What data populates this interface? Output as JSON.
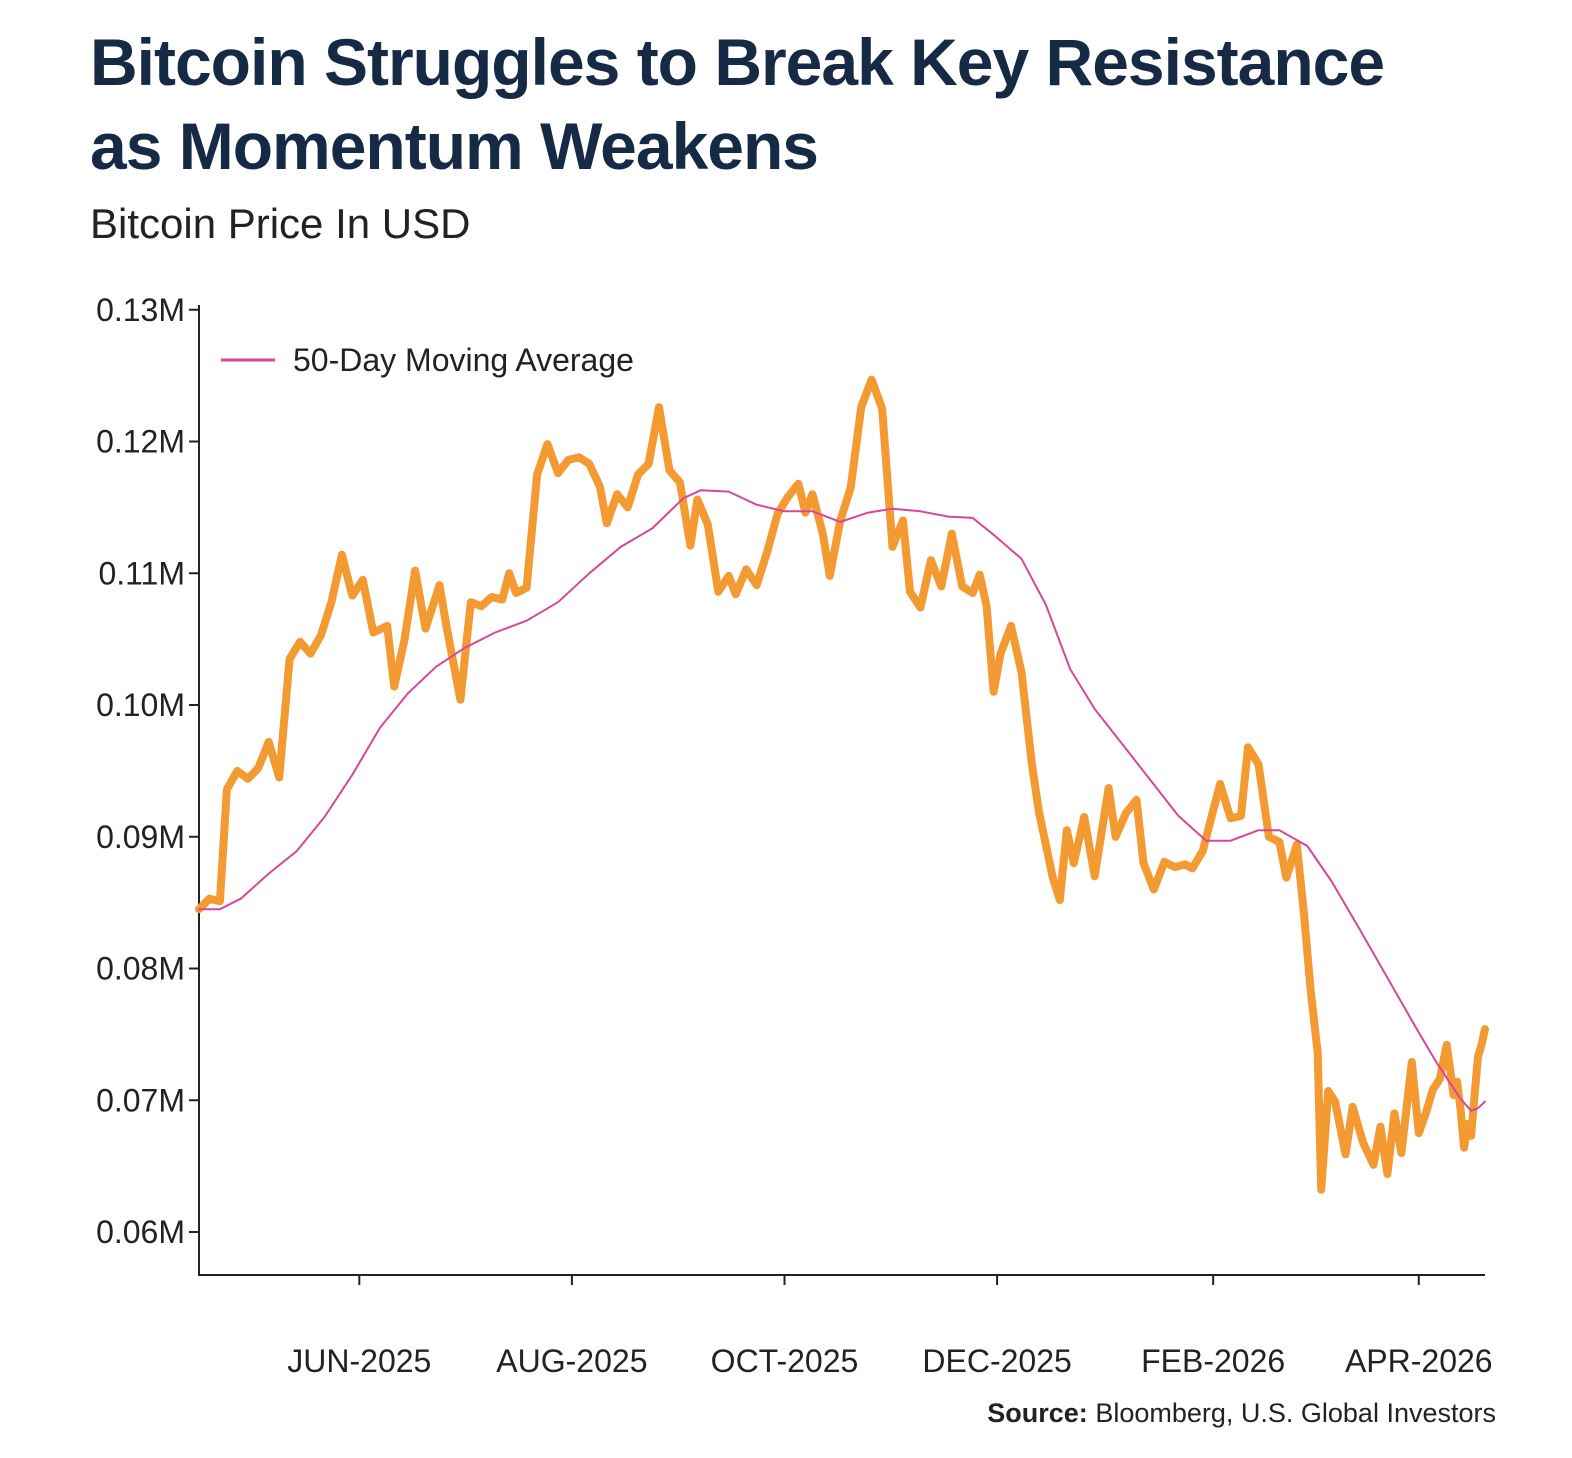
{
  "header": {
    "title_line1": "Bitcoin Struggles to Break Key Resistance",
    "title_line2": "as Momentum Weakens",
    "subtitle": "Bitcoin Price In USD"
  },
  "footer": {
    "source_label": "Source:",
    "source_text": "Bloomberg, U.S. Global Investors"
  },
  "chart_data": {
    "type": "line",
    "title": "Bitcoin Struggles to Break Key Resistance as Momentum Weakens",
    "subtitle": "Bitcoin Price In USD",
    "xlabel": "",
    "ylabel": "",
    "x_range": [
      "2025-04-16",
      "2026-04-20"
    ],
    "ylim": [
      57000,
      130000
    ],
    "y_ticks": [
      130000,
      120000,
      110000,
      100000,
      90000,
      80000,
      70000,
      60000
    ],
    "y_tick_labels": [
      "0.13M",
      "0.12M",
      "0.11M",
      "0.10M",
      "0.09M",
      "0.08M",
      "0.07M",
      "0.06M"
    ],
    "x_ticks": [
      "2025-06-01",
      "2025-08-01",
      "2025-10-01",
      "2025-12-01",
      "2026-02-01",
      "2026-04-01"
    ],
    "x_tick_labels": [
      "JUN-2025",
      "AUG-2025",
      "OCT-2025",
      "DEC-2025",
      "FEB-2026",
      "APR-2026"
    ],
    "legend": {
      "placement": "top-left",
      "entries": [
        "50-Day Moving Average"
      ]
    },
    "grid": false,
    "series": [
      {
        "label": "",
        "color": "#f39a33",
        "points": [
          [
            "2025-04-16",
            84500
          ],
          [
            "2025-04-19",
            85300
          ],
          [
            "2025-04-22",
            85100
          ],
          [
            "2025-04-24",
            93600
          ],
          [
            "2025-04-27",
            95000
          ],
          [
            "2025-04-30",
            94400
          ],
          [
            "2025-05-03",
            95200
          ],
          [
            "2025-05-06",
            97200
          ],
          [
            "2025-05-09",
            94500
          ],
          [
            "2025-05-12",
            103500
          ],
          [
            "2025-05-15",
            104800
          ],
          [
            "2025-05-18",
            103900
          ],
          [
            "2025-05-21",
            105300
          ],
          [
            "2025-05-24",
            107800
          ],
          [
            "2025-05-27",
            111400
          ],
          [
            "2025-05-30",
            108300
          ],
          [
            "2025-06-02",
            109500
          ],
          [
            "2025-06-05",
            105500
          ],
          [
            "2025-06-09",
            106000
          ],
          [
            "2025-06-11",
            101400
          ],
          [
            "2025-06-14",
            105000
          ],
          [
            "2025-06-17",
            110200
          ],
          [
            "2025-06-20",
            105800
          ],
          [
            "2025-06-24",
            109100
          ],
          [
            "2025-06-26",
            106000
          ],
          [
            "2025-06-30",
            100400
          ],
          [
            "2025-07-03",
            107800
          ],
          [
            "2025-07-06",
            107500
          ],
          [
            "2025-07-09",
            108200
          ],
          [
            "2025-07-12",
            108000
          ],
          [
            "2025-07-14",
            110000
          ],
          [
            "2025-07-16",
            108500
          ],
          [
            "2025-07-19",
            108900
          ],
          [
            "2025-07-22",
            117500
          ],
          [
            "2025-07-25",
            119800
          ],
          [
            "2025-07-28",
            117600
          ],
          [
            "2025-07-31",
            118600
          ],
          [
            "2025-08-03",
            118800
          ],
          [
            "2025-08-06",
            118300
          ],
          [
            "2025-08-09",
            116600
          ],
          [
            "2025-08-11",
            113800
          ],
          [
            "2025-08-14",
            116000
          ],
          [
            "2025-08-17",
            115000
          ],
          [
            "2025-08-20",
            117500
          ],
          [
            "2025-08-23",
            118300
          ],
          [
            "2025-08-26",
            122600
          ],
          [
            "2025-08-29",
            117800
          ],
          [
            "2025-09-01",
            116900
          ],
          [
            "2025-09-04",
            112100
          ],
          [
            "2025-09-06",
            115600
          ],
          [
            "2025-09-09",
            113700
          ],
          [
            "2025-09-12",
            108600
          ],
          [
            "2025-09-15",
            109800
          ],
          [
            "2025-09-17",
            108400
          ],
          [
            "2025-09-20",
            110300
          ],
          [
            "2025-09-23",
            109100
          ],
          [
            "2025-09-26",
            111600
          ],
          [
            "2025-09-29",
            114500
          ],
          [
            "2025-10-02",
            115800
          ],
          [
            "2025-10-05",
            116800
          ],
          [
            "2025-10-07",
            114600
          ],
          [
            "2025-10-09",
            116000
          ],
          [
            "2025-10-12",
            113000
          ],
          [
            "2025-10-14",
            109800
          ],
          [
            "2025-10-17",
            114000
          ],
          [
            "2025-10-20",
            116500
          ],
          [
            "2025-10-23",
            122600
          ],
          [
            "2025-10-26",
            124700
          ],
          [
            "2025-10-29",
            122500
          ],
          [
            "2025-11-01",
            112000
          ],
          [
            "2025-11-04",
            114000
          ],
          [
            "2025-11-06",
            108600
          ],
          [
            "2025-11-09",
            107400
          ],
          [
            "2025-11-12",
            111000
          ],
          [
            "2025-11-15",
            109000
          ],
          [
            "2025-11-18",
            113000
          ],
          [
            "2025-11-21",
            109000
          ],
          [
            "2025-11-24",
            108500
          ],
          [
            "2025-11-26",
            109900
          ],
          [
            "2025-11-28",
            107500
          ],
          [
            "2025-11-30",
            101000
          ],
          [
            "2025-12-02",
            103900
          ],
          [
            "2025-12-05",
            106000
          ],
          [
            "2025-12-08",
            102500
          ],
          [
            "2025-12-11",
            95500
          ],
          [
            "2025-12-13",
            91900
          ],
          [
            "2025-12-17",
            86900
          ],
          [
            "2025-12-19",
            85200
          ],
          [
            "2025-12-21",
            90500
          ],
          [
            "2025-12-23",
            88000
          ],
          [
            "2025-12-26",
            91500
          ],
          [
            "2025-12-29",
            87000
          ],
          [
            "2026-01-02",
            93700
          ],
          [
            "2026-01-04",
            90000
          ],
          [
            "2026-01-07",
            91800
          ],
          [
            "2026-01-10",
            92800
          ],
          [
            "2026-01-12",
            88000
          ],
          [
            "2026-01-15",
            86000
          ],
          [
            "2026-01-18",
            88100
          ],
          [
            "2026-01-21",
            87700
          ],
          [
            "2026-01-24",
            87900
          ],
          [
            "2026-01-26",
            87600
          ],
          [
            "2026-01-29",
            88900
          ],
          [
            "2026-02-01",
            92000
          ],
          [
            "2026-02-03",
            94000
          ],
          [
            "2026-02-06",
            91400
          ],
          [
            "2026-02-09",
            91600
          ],
          [
            "2026-02-11",
            96800
          ],
          [
            "2026-02-14",
            95500
          ],
          [
            "2026-02-17",
            90000
          ],
          [
            "2026-02-20",
            89600
          ],
          [
            "2026-02-22",
            86900
          ],
          [
            "2026-02-25",
            89400
          ],
          [
            "2026-02-27",
            84300
          ],
          [
            "2026-03-01",
            78300
          ],
          [
            "2026-03-03",
            73600
          ],
          [
            "2026-03-04",
            63200
          ],
          [
            "2026-03-06",
            70700
          ],
          [
            "2026-03-08",
            69900
          ],
          [
            "2026-03-11",
            65900
          ],
          [
            "2026-03-13",
            69500
          ],
          [
            "2026-03-16",
            66800
          ],
          [
            "2026-03-19",
            65100
          ],
          [
            "2026-03-21",
            68000
          ],
          [
            "2026-03-23",
            64400
          ],
          [
            "2026-03-25",
            69000
          ],
          [
            "2026-03-27",
            66000
          ],
          [
            "2026-03-30",
            72900
          ],
          [
            "2026-04-01",
            67500
          ],
          [
            "2026-04-03",
            69000
          ],
          [
            "2026-04-05",
            70800
          ],
          [
            "2026-04-07",
            71600
          ],
          [
            "2026-04-09",
            74200
          ],
          [
            "2026-04-11",
            70400
          ],
          [
            "2026-04-12",
            71400
          ],
          [
            "2026-04-13",
            69300
          ],
          [
            "2026-04-14",
            66400
          ],
          [
            "2026-04-15",
            68200
          ],
          [
            "2026-04-16",
            67300
          ],
          [
            "2026-04-17",
            70300
          ],
          [
            "2026-04-18",
            73300
          ],
          [
            "2026-04-19",
            74200
          ],
          [
            "2026-04-20",
            75400
          ]
        ]
      },
      {
        "label": "50-Day Moving Average",
        "color": "#d4489a",
        "points": [
          [
            "2025-04-16",
            84500
          ],
          [
            "2025-04-22",
            84500
          ],
          [
            "2025-04-28",
            85300
          ],
          [
            "2025-05-06",
            87200
          ],
          [
            "2025-05-14",
            88900
          ],
          [
            "2025-05-22",
            91500
          ],
          [
            "2025-05-30",
            94700
          ],
          [
            "2025-06-07",
            98300
          ],
          [
            "2025-06-15",
            100900
          ],
          [
            "2025-06-23",
            102900
          ],
          [
            "2025-07-01",
            104300
          ],
          [
            "2025-07-10",
            105500
          ],
          [
            "2025-07-19",
            106400
          ],
          [
            "2025-07-28",
            107800
          ],
          [
            "2025-08-06",
            110000
          ],
          [
            "2025-08-15",
            112000
          ],
          [
            "2025-08-24",
            113400
          ],
          [
            "2025-09-02",
            115700
          ],
          [
            "2025-09-07",
            116300
          ],
          [
            "2025-09-15",
            116200
          ],
          [
            "2025-09-23",
            115200
          ],
          [
            "2025-10-01",
            114700
          ],
          [
            "2025-10-09",
            114700
          ],
          [
            "2025-10-17",
            113900
          ],
          [
            "2025-10-25",
            114600
          ],
          [
            "2025-11-01",
            114900
          ],
          [
            "2025-11-09",
            114700
          ],
          [
            "2025-11-17",
            114300
          ],
          [
            "2025-11-24",
            114200
          ],
          [
            "2025-12-01",
            112700
          ],
          [
            "2025-12-08",
            111100
          ],
          [
            "2025-12-15",
            107600
          ],
          [
            "2025-12-22",
            102700
          ],
          [
            "2025-12-29",
            99700
          ],
          [
            "2026-01-06",
            97000
          ],
          [
            "2026-01-14",
            94300
          ],
          [
            "2026-01-22",
            91600
          ],
          [
            "2026-01-30",
            89700
          ],
          [
            "2026-02-06",
            89700
          ],
          [
            "2026-02-14",
            90500
          ],
          [
            "2026-02-20",
            90500
          ],
          [
            "2026-02-28",
            89300
          ],
          [
            "2026-03-07",
            86600
          ],
          [
            "2026-03-15",
            83000
          ],
          [
            "2026-03-23",
            79300
          ],
          [
            "2026-03-31",
            75600
          ],
          [
            "2026-04-06",
            72900
          ],
          [
            "2026-04-10",
            71300
          ],
          [
            "2026-04-13",
            70100
          ],
          [
            "2026-04-16",
            69200
          ],
          [
            "2026-04-18",
            69400
          ],
          [
            "2026-04-20",
            69900
          ]
        ]
      }
    ]
  }
}
